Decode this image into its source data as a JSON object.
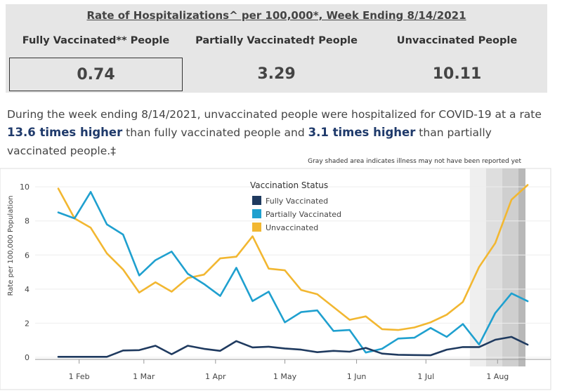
{
  "summary": {
    "title": "Rate of Hospitalizations^ per 100,000*, Week Ending 8/14/2021",
    "columns": [
      {
        "label": "Fully Vaccinated** People",
        "value": "0.74"
      },
      {
        "label": "Partially Vaccinated† People",
        "value": "3.29"
      },
      {
        "label": "Unvaccinated People",
        "value": "10.11"
      }
    ]
  },
  "sentence": {
    "part1": "During the week ending 8/14/2021, unvaccinated people were hospitalized for COVID-19 at a rate ",
    "emph1": "13.6 times higher",
    "part2": " than fully vaccinated people and ",
    "emph2": "3.1 times higher",
    "part3": " than partially vaccinated people.‡"
  },
  "chart_data": {
    "type": "line",
    "note": "Gray shaded area indicates illness may not have been reported yet",
    "ylabel": "Rate per 100,000 Population",
    "xlabel": "",
    "ylim": [
      0,
      10.5
    ],
    "yticks": [
      0,
      2,
      4,
      6,
      8,
      10
    ],
    "x": [
      "2021-01-23",
      "2021-01-30",
      "2021-02-06",
      "2021-02-13",
      "2021-02-20",
      "2021-02-27",
      "2021-03-06",
      "2021-03-13",
      "2021-03-20",
      "2021-03-27",
      "2021-04-03",
      "2021-04-10",
      "2021-04-17",
      "2021-04-24",
      "2021-05-01",
      "2021-05-08",
      "2021-05-15",
      "2021-05-22",
      "2021-05-29",
      "2021-06-05",
      "2021-06-12",
      "2021-06-19",
      "2021-06-26",
      "2021-07-03",
      "2021-07-10",
      "2021-07-17",
      "2021-07-24",
      "2021-07-31",
      "2021-08-07",
      "2021-08-14"
    ],
    "xticks": [
      {
        "label": "1 Feb",
        "date": "2021-02-01"
      },
      {
        "label": "1 Mar",
        "date": "2021-03-01"
      },
      {
        "label": "1 Apr",
        "date": "2021-04-01"
      },
      {
        "label": "1 May",
        "date": "2021-05-01"
      },
      {
        "label": "1 Jun",
        "date": "2021-06-01"
      },
      {
        "label": "1 Jul",
        "date": "2021-07-01"
      },
      {
        "label": "1 Aug",
        "date": "2021-08-01"
      }
    ],
    "shaded": [
      {
        "start": "2021-07-20",
        "end": "2021-07-27",
        "color": "#efefef"
      },
      {
        "start": "2021-07-27",
        "end": "2021-08-03",
        "color": "#dedede"
      },
      {
        "start": "2021-08-03",
        "end": "2021-08-10",
        "color": "#cfcfcf"
      },
      {
        "start": "2021-08-10",
        "end": "2021-08-17",
        "color": "#b8b8b8"
      }
    ],
    "legend": {
      "title": "Vaccination Status",
      "position": "top-center"
    },
    "series": [
      {
        "name": "Fully Vaccinated",
        "color": "#1f3a5f",
        "values": [
          0.03,
          0.03,
          0.03,
          0.03,
          0.4,
          0.42,
          0.68,
          0.18,
          0.68,
          0.5,
          0.38,
          0.95,
          0.58,
          0.62,
          0.52,
          0.45,
          0.3,
          0.38,
          0.33,
          0.55,
          0.22,
          0.15,
          0.13,
          0.12,
          0.45,
          0.6,
          0.6,
          1.03,
          1.2,
          0.74
        ]
      },
      {
        "name": "Partially Vaccinated",
        "color": "#1fa0cf",
        "values": [
          8.5,
          8.15,
          9.7,
          7.8,
          7.2,
          4.8,
          5.7,
          6.2,
          4.9,
          4.3,
          3.6,
          5.25,
          3.3,
          3.85,
          2.05,
          2.65,
          2.75,
          1.55,
          1.6,
          0.28,
          0.5,
          1.1,
          1.15,
          1.72,
          1.2,
          1.95,
          0.75,
          2.6,
          3.75,
          3.29
        ]
      },
      {
        "name": "Unvaccinated",
        "color": "#f2b731",
        "values": [
          9.9,
          8.15,
          7.6,
          6.1,
          5.15,
          3.8,
          4.4,
          3.85,
          4.65,
          4.85,
          5.8,
          5.9,
          7.1,
          5.2,
          5.1,
          3.95,
          3.7,
          2.95,
          2.2,
          2.4,
          1.65,
          1.6,
          1.75,
          2.05,
          2.5,
          3.25,
          5.3,
          6.7,
          9.25,
          10.11
        ]
      }
    ]
  }
}
